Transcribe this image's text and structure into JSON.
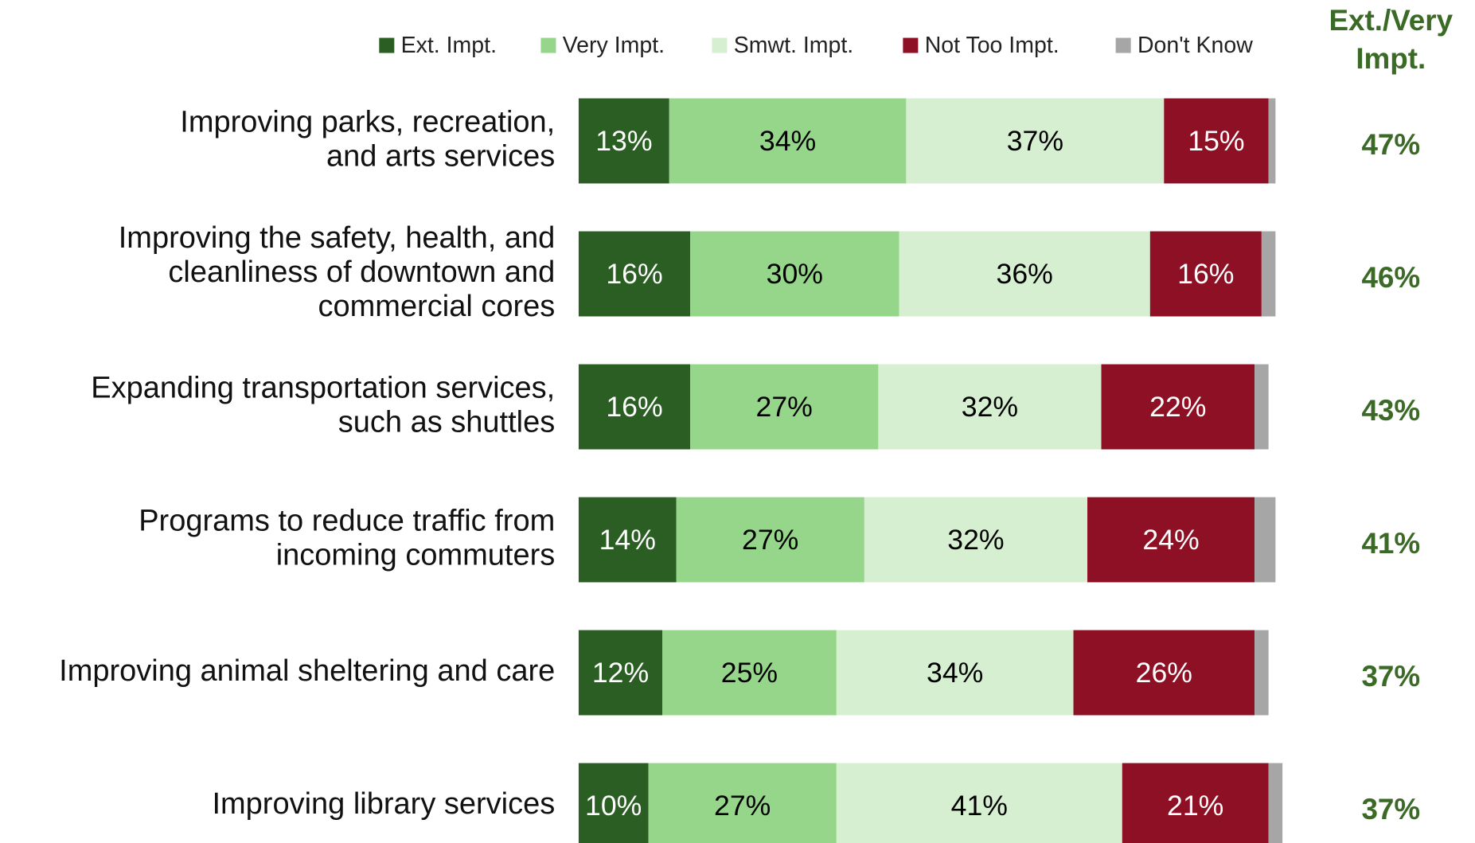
{
  "chart_data": {
    "type": "stacked_bar_horizontal",
    "categories": [
      [
        "Improving parks, recreation,",
        "and arts services"
      ],
      [
        "Improving the safety, health, and",
        "cleanliness of downtown and",
        "commercial cores"
      ],
      [
        "Expanding transportation services,",
        "such as shuttles"
      ],
      [
        "Programs to reduce traffic from",
        "incoming commuters"
      ],
      [
        "Improving animal sheltering and care"
      ],
      [
        "Improving library services"
      ]
    ],
    "series": [
      {
        "name": "Ext. Impt.",
        "color": "#2a5e22",
        "label_color": "#ffffff",
        "values": [
          13,
          16,
          16,
          14,
          12,
          10
        ],
        "value_labels": [
          "13%",
          "16%",
          "16%",
          "14%",
          "12%",
          "10%"
        ]
      },
      {
        "name": "Very Impt.",
        "color": "#96d68a",
        "label_color": "#000000",
        "values": [
          34,
          30,
          27,
          27,
          25,
          27
        ],
        "value_labels": [
          "34%",
          "30%",
          "27%",
          "27%",
          "25%",
          "27%"
        ]
      },
      {
        "name": "Smwt. Impt.",
        "color": "#d7efd1",
        "label_color": "#000000",
        "values": [
          37,
          36,
          32,
          32,
          34,
          41
        ],
        "value_labels": [
          "37%",
          "36%",
          "32%",
          "32%",
          "34%",
          "41%"
        ]
      },
      {
        "name": "Not Too Impt.",
        "color": "#8e1024",
        "label_color": "#ffffff",
        "values": [
          15,
          16,
          22,
          24,
          26,
          21
        ],
        "value_labels": [
          "15%",
          "16%",
          "22%",
          "24%",
          "26%",
          "21%"
        ]
      },
      {
        "name": "Don't Know",
        "color": "#a6a6a6",
        "values": [
          1,
          2,
          2,
          3,
          2,
          2
        ]
      }
    ],
    "xlim": [
      0,
      100
    ],
    "totals": {
      "title": [
        "Ext./Very",
        "Impt."
      ],
      "color": "#3a6a25",
      "values": [
        47,
        46,
        43,
        41,
        37,
        37
      ],
      "value_labels": [
        "47%",
        "46%",
        "43%",
        "41%",
        "37%",
        "37%"
      ]
    }
  }
}
